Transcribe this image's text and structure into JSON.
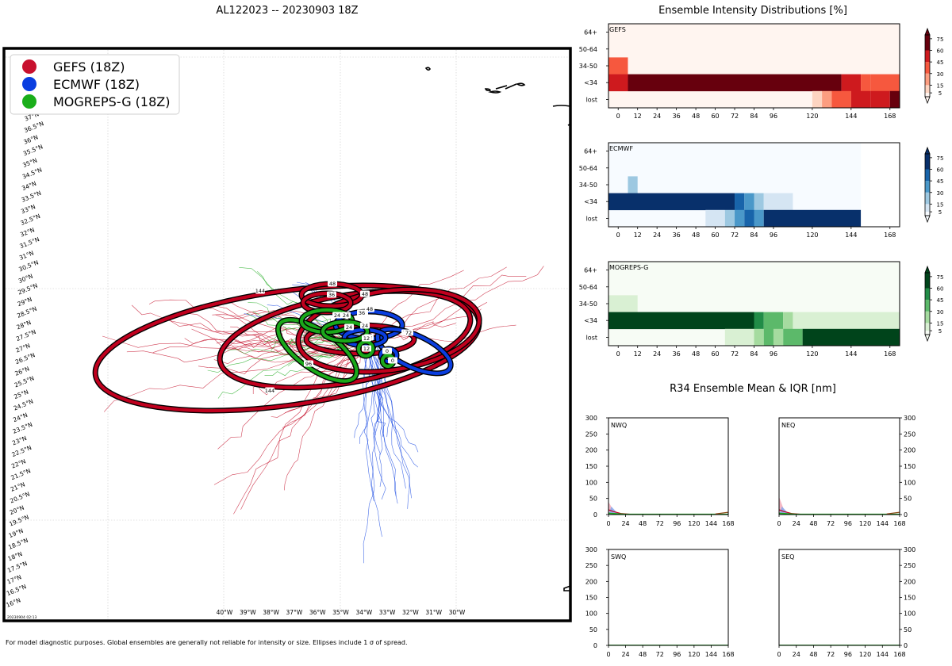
{
  "storm_title": "AL122023 -- 20230903 18Z",
  "footnote": "For model diagnostic purposes. Global ensembles are generally not reliable for intensity or size. Ellipses include 1 σ of spread.",
  "map_stamp": "20230904 02:13",
  "colors": {
    "gefs": "#c0001e",
    "ecmwf": "#0a3ee0",
    "mogreps": "#1aa81a"
  },
  "legend": [
    {
      "label": "GEFS (18Z)",
      "color": "#c8102e"
    },
    {
      "label": "ECMWF (18Z)",
      "color": "#0a3ee0"
    },
    {
      "label": "MOGREPS-G (18Z)",
      "color": "#1aae1a"
    }
  ],
  "chart_data": [
    {
      "type": "map",
      "lat_labels": [
        "16°N",
        "16.5°N",
        "17°N",
        "17.5°N",
        "18°N",
        "18.5°N",
        "19°N",
        "19.5°N",
        "20°N",
        "20.5°N",
        "21°N",
        "21.5°N",
        "22°N",
        "22.5°N",
        "23°N",
        "23.5°N",
        "24°N",
        "24.5°N",
        "25°N",
        "25.5°N",
        "26°N",
        "26.5°N",
        "27°N",
        "27.5°N",
        "28°N",
        "28.5°N",
        "29°N",
        "29.5°N",
        "30°N",
        "30.5°N",
        "31°N",
        "31.5°N",
        "32°N",
        "32.5°N",
        "33°N",
        "33.5°N",
        "34°N",
        "34.5°N",
        "35°N",
        "35.5°N",
        "36°N",
        "36.5°N",
        "37°N"
      ],
      "lon_labels": [
        "40°W",
        "39°W",
        "38°W",
        "37°W",
        "36°W",
        "35°W",
        "34°W",
        "33°W",
        "32°W",
        "31°W",
        "30°W"
      ],
      "ellipse_hour_labels": {
        "gefs": [
          "144",
          "144",
          "48",
          "36",
          "72",
          "12",
          "48",
          "36",
          "24",
          "0"
        ],
        "ecmwf": [
          "48",
          "36",
          "24",
          "72",
          "12"
        ],
        "mogreps": [
          "96",
          "24",
          "24",
          "12",
          "0"
        ]
      }
    },
    {
      "type": "heatmap",
      "title": "Ensemble Intensity Distributions [%]",
      "panels": [
        {
          "label": "GEFS",
          "cmap": "reds"
        },
        {
          "label": "ECMWF",
          "cmap": "blues"
        },
        {
          "label": "MOGREPS-G",
          "cmap": "greens"
        }
      ],
      "y_categories": [
        "lost",
        "<34",
        "34-50",
        "50-64",
        "64+"
      ],
      "x_tick_labels": [
        "0",
        "12",
        "24",
        "36",
        "48",
        "60",
        "72",
        "84",
        "96",
        "120",
        "144",
        "168"
      ],
      "x_ticks": [
        0,
        12,
        24,
        36,
        48,
        60,
        72,
        84,
        96,
        120,
        144,
        168
      ],
      "xlim": [
        -6,
        174
      ],
      "colorbar_ticks": [
        5,
        15,
        30,
        45,
        60,
        75
      ],
      "colorbar_max": 80
    },
    {
      "type": "line",
      "title": "R34 Ensemble Mean & IQR [nm]",
      "panels": [
        {
          "label": "NWQ"
        },
        {
          "label": "NEQ"
        },
        {
          "label": "SWQ"
        },
        {
          "label": "SEQ"
        }
      ],
      "x_tick_labels": [
        "0",
        "24",
        "48",
        "72",
        "96",
        "120",
        "144",
        "168"
      ],
      "y_tick_labels": [
        "0",
        "50",
        "100",
        "150",
        "200",
        "250",
        "300"
      ],
      "xlim": [
        0,
        168
      ],
      "ylim": [
        0,
        300
      ]
    }
  ]
}
